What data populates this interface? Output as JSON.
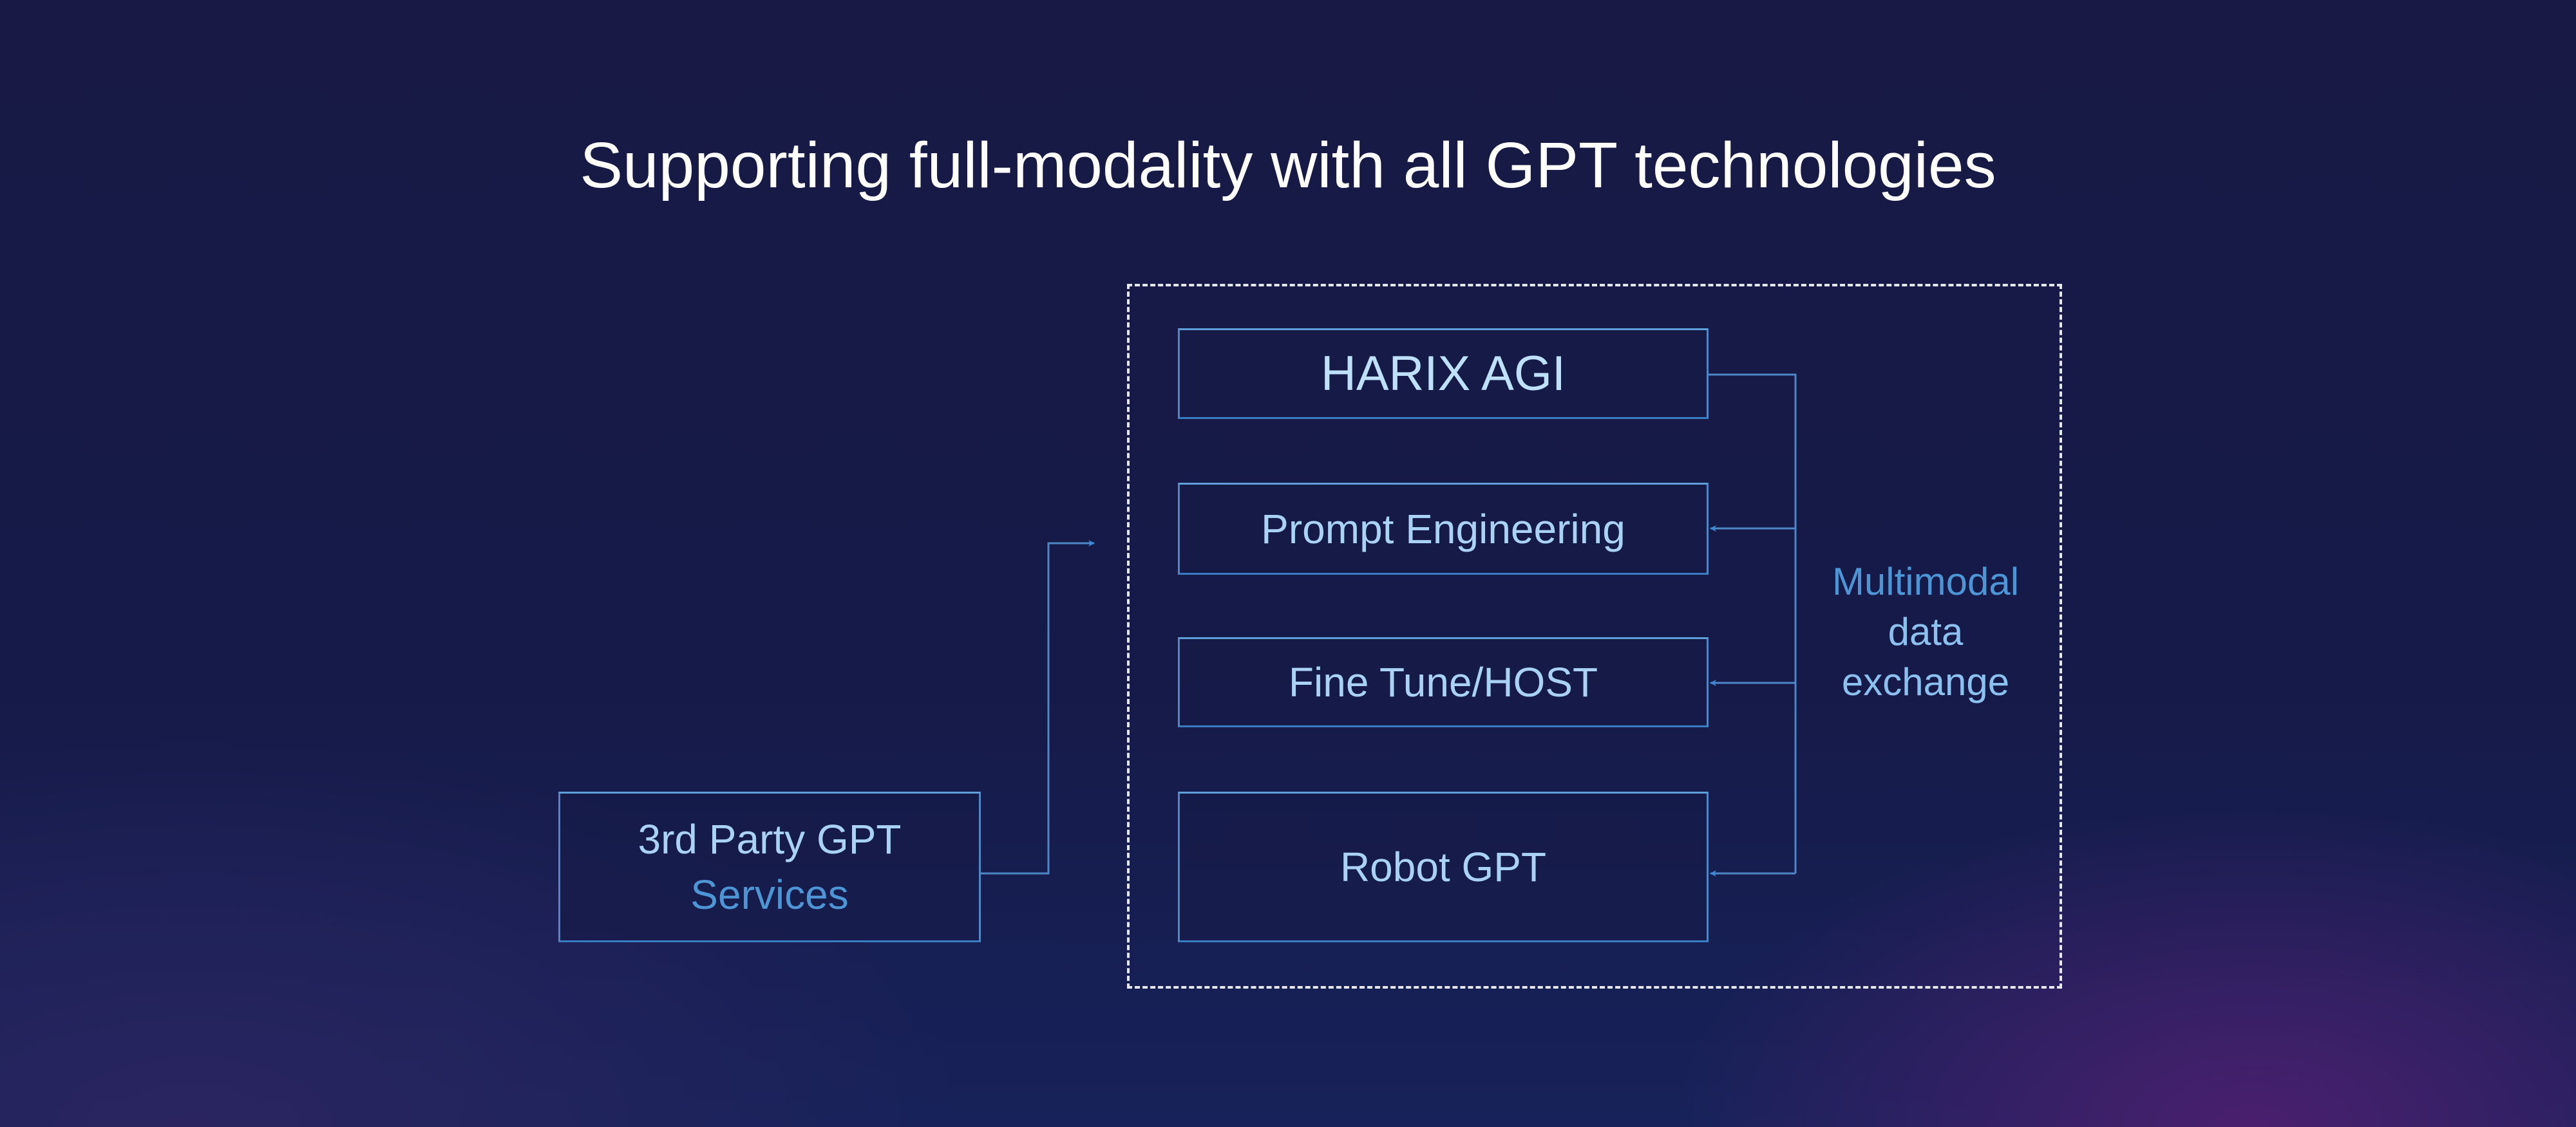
{
  "title": "Supporting full-modality with all GPT technologies",
  "boxes": {
    "harix": "HARIX AGI",
    "prompt": "Prompt Engineering",
    "finetune": "Fine Tune/HOST",
    "robot": "Robot GPT",
    "third_party_line1": "3rd Party GPT",
    "third_party_line2": "Services"
  },
  "exchange_label": [
    "Multimodal",
    "data",
    "exchange"
  ],
  "colors": {
    "background": "#181a45",
    "line": "#4f86c6",
    "text": "#a9d2f5",
    "accent": "#4e95d6"
  }
}
